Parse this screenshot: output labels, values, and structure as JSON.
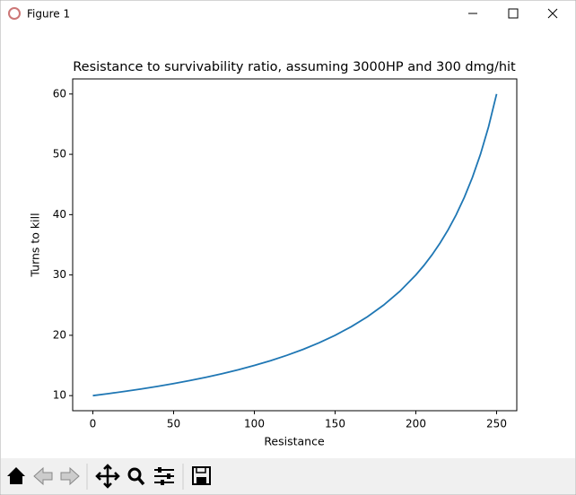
{
  "window_title": "Figure 1",
  "chart_data": {
    "type": "line",
    "title": "Resistance to survivability ratio, assuming 3000HP and 300 dmg/hit",
    "x_label": "Resistance",
    "y_label": "Turns to kill",
    "x": [
      0,
      10,
      20,
      30,
      40,
      50,
      60,
      70,
      80,
      90,
      100,
      110,
      120,
      130,
      140,
      150,
      160,
      170,
      180,
      190,
      200,
      205,
      210,
      215,
      220,
      225,
      230,
      235,
      240,
      245,
      250
    ],
    "series": [
      {
        "name": "Turns to kill",
        "color": "#1f77b4",
        "values": [
          10,
          10.345,
          10.714,
          11.111,
          11.538,
          12,
          12.5,
          13.043,
          13.636,
          14.286,
          15,
          15.789,
          16.667,
          17.647,
          18.75,
          20,
          21.429,
          23.077,
          25,
          27.273,
          30,
          31.579,
          33.333,
          35.294,
          37.5,
          40,
          42.857,
          46.154,
          50,
          54.545,
          60
        ]
      }
    ],
    "xlim": [
      -12.5,
      262.5
    ],
    "xticks": [
      0,
      50,
      100,
      150,
      200,
      250
    ],
    "ylim": [
      7.5,
      62.5
    ],
    "yticks": [
      10,
      20,
      30,
      40,
      50,
      60
    ]
  }
}
